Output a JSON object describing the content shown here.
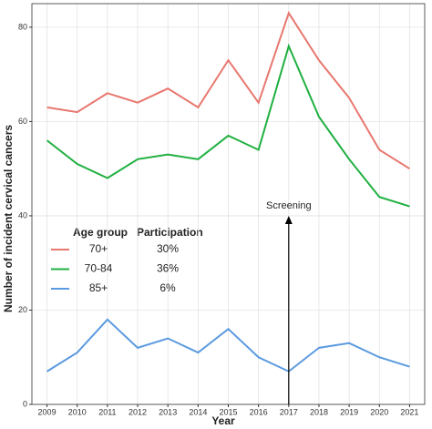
{
  "chart_data": {
    "type": "line",
    "x_label": "Year",
    "y_label": "Number of incident cervical cancers",
    "x": [
      2009,
      2010,
      2011,
      2012,
      2013,
      2014,
      2015,
      2016,
      2017,
      2018,
      2019,
      2020,
      2021
    ],
    "series": [
      {
        "name": "70+",
        "participation": "30%",
        "color": "#e8776f",
        "values": [
          63,
          62,
          66,
          64,
          67,
          63,
          73,
          64,
          83,
          73,
          65,
          54,
          50
        ]
      },
      {
        "name": "70-84",
        "participation": "36%",
        "color": "#1fb040",
        "values": [
          56,
          51,
          48,
          52,
          53,
          52,
          57,
          54,
          76,
          61,
          52,
          44,
          42
        ]
      },
      {
        "name": "85+",
        "participation": "6%",
        "color": "#5b9ae0",
        "values": [
          7,
          11,
          18,
          12,
          14,
          11,
          16,
          10,
          7,
          12,
          13,
          10,
          8
        ]
      }
    ],
    "legend_title": "Age group",
    "legend_participation_title": "Participation",
    "annotation": {
      "text": "Screening",
      "x": 2017,
      "y": 40
    },
    "xlim": [
      2008.5,
      2021.5
    ],
    "xticks": [
      2009,
      2010,
      2011,
      2012,
      2013,
      2014,
      2015,
      2016,
      2017,
      2018,
      2019,
      2020,
      2021
    ],
    "ylim": [
      0,
      85
    ],
    "yticks": [
      0,
      20,
      40,
      60,
      80
    ],
    "grid": true
  }
}
